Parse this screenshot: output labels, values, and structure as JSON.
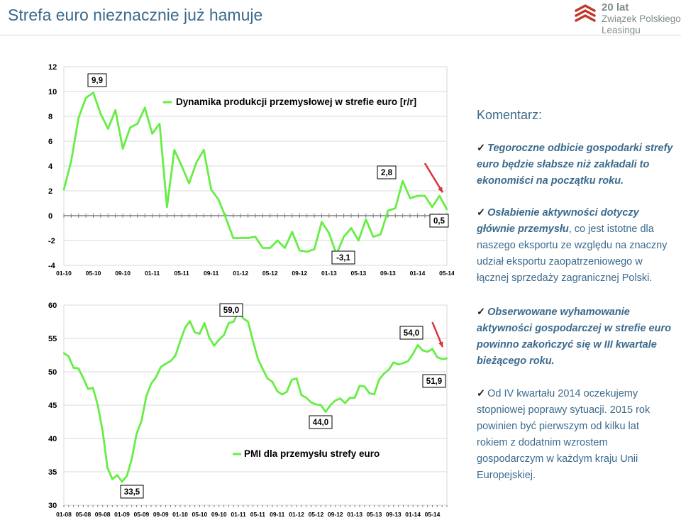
{
  "header": {
    "title": "Strefa euro nieznacznie już hamuje"
  },
  "brand": {
    "line1": "20 lat",
    "line2": "Związek Polskiego",
    "line3": "Leasingu"
  },
  "colors": {
    "series": "#66ee44",
    "arrow": "#d9343a",
    "text": "#3b6a8c"
  },
  "chart_data": [
    {
      "type": "line",
      "title": "",
      "ylim": [
        -4,
        12
      ],
      "yticks": [
        "12",
        "10",
        "8",
        "6",
        "4",
        "2",
        "0",
        "-2",
        "-4"
      ],
      "xtick_labels": [
        "01-10",
        "05-10",
        "09-10",
        "01-11",
        "05-11",
        "09-11",
        "01-12",
        "05-12",
        "09-12",
        "01-13",
        "05-13",
        "09-13",
        "01-14",
        "05-14"
      ],
      "series": [
        {
          "name": "Dynamika produkcji przemysłowej w strefie euro [r/r]",
          "values": [
            2.1,
            4.4,
            7.9,
            9.5,
            9.9,
            8.2,
            7.0,
            8.5,
            5.4,
            7.1,
            7.4,
            8.7,
            6.6,
            7.4,
            0.7,
            5.3,
            4.0,
            2.6,
            4.3,
            5.3,
            2.1,
            1.3,
            -0.2,
            -1.8,
            -1.8,
            -1.8,
            -1.7,
            -2.6,
            -2.6,
            -2.0,
            -2.6,
            -1.3,
            -2.8,
            -2.9,
            -2.7,
            -0.5,
            -1.4,
            -3.1,
            -1.7,
            -1.0,
            -2.0,
            -0.3,
            -1.7,
            -1.5,
            0.4,
            0.6,
            2.8,
            1.4,
            1.6,
            1.6,
            0.7,
            1.6,
            0.5
          ]
        }
      ],
      "annotations": [
        "9,9",
        "2,8",
        "0,5",
        "-3,1"
      ]
    },
    {
      "type": "line",
      "title": "",
      "ylim": [
        30,
        60
      ],
      "yticks": [
        "60",
        "55",
        "50",
        "45",
        "40",
        "35",
        "30"
      ],
      "xtick_labels": [
        "01-08",
        "05-08",
        "09-08",
        "01-09",
        "05-09",
        "09-09",
        "01-10",
        "05-10",
        "09-10",
        "01-11",
        "05-11",
        "09-11",
        "01-12",
        "05-12",
        "09-12",
        "01-13",
        "05-13",
        "09-13",
        "01-14",
        "05-14"
      ],
      "series": [
        {
          "name": "PMI dla przemysłu strefy euro",
          "values": [
            52.8,
            52.3,
            50.6,
            50.5,
            49.1,
            47.4,
            47.6,
            45.0,
            41.1,
            35.6,
            33.9,
            34.5,
            33.5,
            34.4,
            36.9,
            40.7,
            42.6,
            46.3,
            48.2,
            49.2,
            50.7,
            51.2,
            51.6,
            52.4,
            54.6,
            56.6,
            57.6,
            55.9,
            55.7,
            57.3,
            55.1,
            53.9,
            54.8,
            55.5,
            57.3,
            57.5,
            59.0,
            58.0,
            57.5,
            54.6,
            52.0,
            50.4,
            49.0,
            48.5,
            47.1,
            46.6,
            47.0,
            48.8,
            49.0,
            46.5,
            46.1,
            45.4,
            45.1,
            45.0,
            44.0,
            45.0,
            45.7,
            46.0,
            45.3,
            46.1,
            46.1,
            47.9,
            47.8,
            46.8,
            46.6,
            48.8,
            49.7,
            50.3,
            51.4,
            51.1,
            51.3,
            51.6,
            52.7,
            54.0,
            53.2,
            53.0,
            53.4,
            52.2,
            51.9,
            52.0
          ]
        }
      ],
      "annotations": [
        "59,0",
        "54,0",
        "51,9",
        "44,0",
        "33,5"
      ]
    }
  ],
  "comment": {
    "heading": "Komentarz:",
    "check_glyph": "✓",
    "points": [
      {
        "lines": [
          "Tegoroczne odbicie gospodarki strefy",
          "euro będzie słabsze niż zakładali to",
          "ekonomiści na początku roku."
        ]
      },
      {
        "lines": [
          "Osłabienie aktywności dotyczy",
          "głównie przemysłu, co jest istotne dla",
          "naszego eksportu ze względu na znaczny",
          "udział eksportu zaopatrzeniowego w",
          "łącznej sprzedaży zagranicznej Polski."
        ]
      },
      {
        "lines": [
          "Obserwowane wyhamowanie",
          "aktywności gospodarczej w strefie euro",
          "powinno zakończyć się w III kwartale",
          "bieżącego roku."
        ]
      },
      {
        "lines": [
          "Od IV kwartału 2014 oczekujemy",
          "stopniowej poprawy sytuacji. 2015 rok",
          "powinien być pierwszym od kilku lat",
          "rokiem z dodatnim wzrostem",
          "gospodarczym w każdym kraju Unii",
          "Europejskiej."
        ]
      }
    ]
  }
}
